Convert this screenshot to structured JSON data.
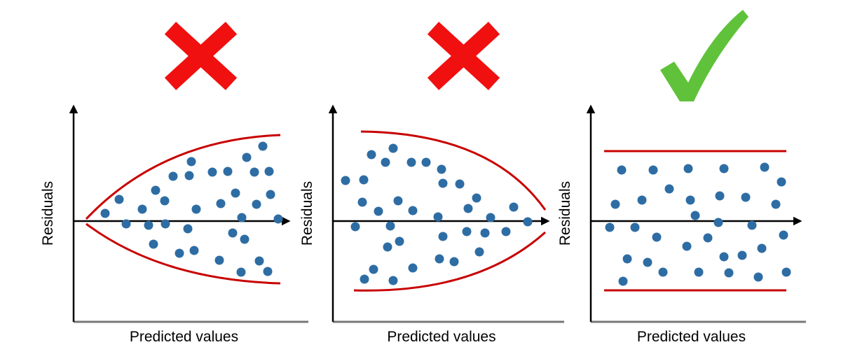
{
  "panels": [
    {
      "y_label": "Residuals",
      "x_label": "Predicted values"
    },
    {
      "y_label": "Residuals",
      "x_label": "Predicted values"
    },
    {
      "y_label": "Residuals",
      "x_label": "Predicted values"
    }
  ]
}
